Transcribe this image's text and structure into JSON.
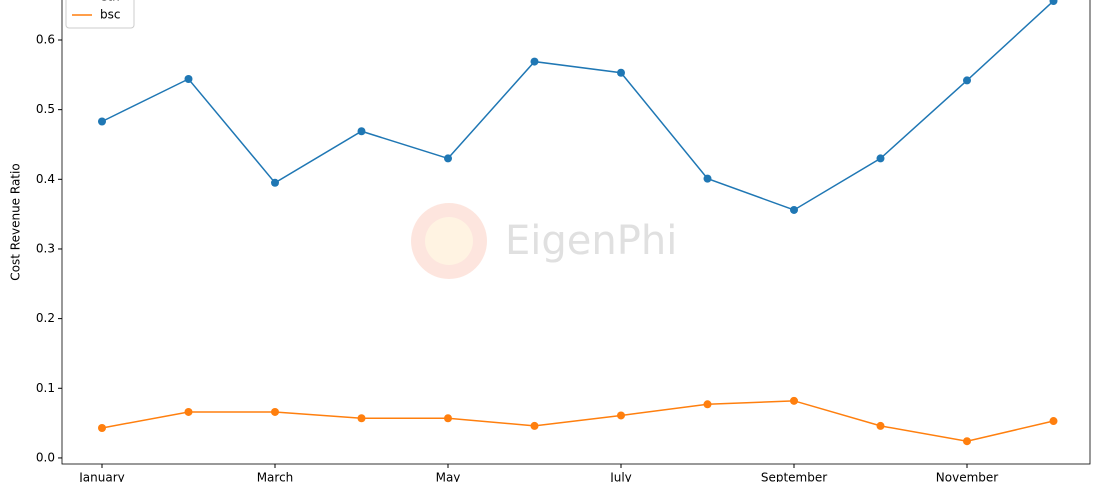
{
  "chart_data": {
    "type": "line",
    "ylabel": "Cost Revenue Ratio",
    "watermark": "EigenPhi",
    "categories": [
      "January",
      null,
      "March",
      null,
      "May",
      null,
      "July",
      null,
      "September",
      null,
      "November",
      null
    ],
    "series": [
      {
        "name": "eth",
        "color": "#1f77b4",
        "values": [
          0.483,
          0.544,
          0.395,
          0.469,
          0.43,
          0.569,
          0.553,
          0.401,
          0.356,
          0.43,
          0.542,
          0.656
        ]
      },
      {
        "name": "bsc",
        "color": "#ff7f0e",
        "values": [
          0.043,
          0.066,
          0.066,
          0.057,
          0.057,
          0.046,
          0.061,
          0.077,
          0.082,
          0.046,
          0.024,
          0.053
        ]
      }
    ],
    "ylim": [
      -0.0087,
      0.689
    ],
    "yticks": [
      {
        "value": 0,
        "label": "0.0"
      },
      0.1,
      0.2,
      0.3,
      0.4,
      0.5,
      0.6
    ],
    "legend": "upper left"
  }
}
